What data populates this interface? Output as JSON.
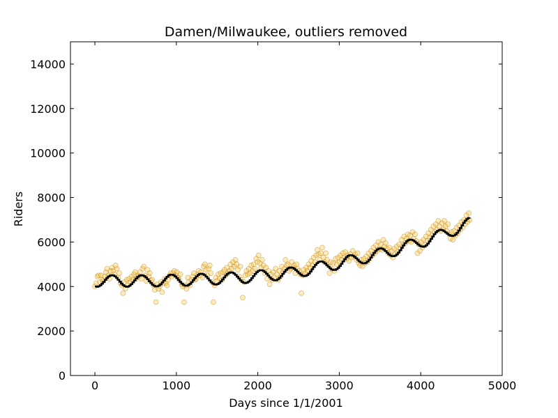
{
  "chart_data": {
    "type": "scatter",
    "title": "Damen/Milwaukee, outliers removed",
    "xlabel": "Days since 1/1/2001",
    "ylabel": "Riders",
    "xlim": [
      -300,
      5000
    ],
    "ylim": [
      0,
      15000
    ],
    "xticks": [
      0,
      1000,
      2000,
      3000,
      4000,
      5000
    ],
    "yticks": [
      0,
      2000,
      4000,
      6000,
      8000,
      10000,
      12000,
      14000
    ],
    "grid": false,
    "legend": "none",
    "colors": {
      "scatter_fill": "#ffb000",
      "scatter_edge": "#b07a00",
      "trend_line": "#000000"
    },
    "scatter_opacity": 0.25,
    "trend_anchor_days": [
      0,
      600,
      1200,
      1800,
      2400,
      3000,
      3600,
      4200,
      4600
    ],
    "trend_anchor_riders": [
      4250,
      4250,
      4300,
      4400,
      4600,
      5050,
      5550,
      6250,
      6850
    ],
    "trend_seasonal_amplitude": 260,
    "trend_step_days": 20,
    "trend_max_day": 4600,
    "series": [
      {
        "type": "scatter",
        "points": [
          [
            0,
            4000
          ],
          [
            15,
            4150
          ],
          [
            30,
            4450
          ],
          [
            45,
            4500
          ],
          [
            60,
            4200
          ],
          [
            75,
            4500
          ],
          [
            90,
            4300
          ],
          [
            105,
            4250
          ],
          [
            120,
            4450
          ],
          [
            135,
            4650
          ],
          [
            150,
            4800
          ],
          [
            165,
            4500
          ],
          [
            180,
            4350
          ],
          [
            195,
            4700
          ],
          [
            210,
            4850
          ],
          [
            225,
            4700
          ],
          [
            240,
            4550
          ],
          [
            255,
            4950
          ],
          [
            270,
            4800
          ],
          [
            285,
            4400
          ],
          [
            300,
            4600
          ],
          [
            315,
            4150
          ],
          [
            330,
            4050
          ],
          [
            345,
            3700
          ],
          [
            360,
            4200
          ],
          [
            375,
            3900
          ],
          [
            390,
            4300
          ],
          [
            405,
            4050
          ],
          [
            420,
            4350
          ],
          [
            435,
            4200
          ],
          [
            450,
            4450
          ],
          [
            465,
            4300
          ],
          [
            480,
            4550
          ],
          [
            495,
            4650
          ],
          [
            510,
            4350
          ],
          [
            525,
            4500
          ],
          [
            540,
            4450
          ],
          [
            555,
            4650
          ],
          [
            570,
            4350
          ],
          [
            585,
            4800
          ],
          [
            600,
            4900
          ],
          [
            615,
            4500
          ],
          [
            630,
            4250
          ],
          [
            645,
            4750
          ],
          [
            660,
            4450
          ],
          [
            675,
            4600
          ],
          [
            690,
            4250
          ],
          [
            705,
            4300
          ],
          [
            720,
            4050
          ],
          [
            735,
            3850
          ],
          [
            750,
            3300
          ],
          [
            765,
            4100
          ],
          [
            780,
            3900
          ],
          [
            795,
            4000
          ],
          [
            810,
            4200
          ],
          [
            825,
            3750
          ],
          [
            840,
            4150
          ],
          [
            855,
            4350
          ],
          [
            870,
            4150
          ],
          [
            885,
            4050
          ],
          [
            900,
            4300
          ],
          [
            915,
            4500
          ],
          [
            930,
            4600
          ],
          [
            945,
            4450
          ],
          [
            960,
            4600
          ],
          [
            975,
            4700
          ],
          [
            990,
            4500
          ],
          [
            1005,
            4650
          ],
          [
            1020,
            4400
          ],
          [
            1035,
            4300
          ],
          [
            1050,
            4550
          ],
          [
            1065,
            4100
          ],
          [
            1080,
            4000
          ],
          [
            1095,
            3300
          ],
          [
            1110,
            4050
          ],
          [
            1125,
            3900
          ],
          [
            1140,
            4400
          ],
          [
            1155,
            4200
          ],
          [
            1170,
            4050
          ],
          [
            1185,
            4300
          ],
          [
            1200,
            4450
          ],
          [
            1215,
            4600
          ],
          [
            1230,
            4300
          ],
          [
            1245,
            4350
          ],
          [
            1260,
            4550
          ],
          [
            1275,
            4700
          ],
          [
            1290,
            4500
          ],
          [
            1305,
            4650
          ],
          [
            1320,
            4400
          ],
          [
            1335,
            4900
          ],
          [
            1350,
            5000
          ],
          [
            1365,
            4750
          ],
          [
            1380,
            4500
          ],
          [
            1395,
            4800
          ],
          [
            1410,
            4950
          ],
          [
            1425,
            4600
          ],
          [
            1440,
            4200
          ],
          [
            1455,
            3300
          ],
          [
            1470,
            4050
          ],
          [
            1485,
            4400
          ],
          [
            1500,
            4250
          ],
          [
            1515,
            4550
          ],
          [
            1530,
            4350
          ],
          [
            1545,
            4600
          ],
          [
            1560,
            4300
          ],
          [
            1575,
            4650
          ],
          [
            1590,
            4750
          ],
          [
            1605,
            4500
          ],
          [
            1620,
            4850
          ],
          [
            1635,
            4600
          ],
          [
            1650,
            4700
          ],
          [
            1665,
            5000
          ],
          [
            1680,
            4800
          ],
          [
            1695,
            5100
          ],
          [
            1710,
            4900
          ],
          [
            1725,
            5200
          ],
          [
            1740,
            5000
          ],
          [
            1755,
            4750
          ],
          [
            1770,
            4450
          ],
          [
            1785,
            4900
          ],
          [
            1800,
            4300
          ],
          [
            1815,
            3500
          ],
          [
            1830,
            4200
          ],
          [
            1845,
            4500
          ],
          [
            1860,
            4700
          ],
          [
            1875,
            4550
          ],
          [
            1890,
            4800
          ],
          [
            1905,
            4600
          ],
          [
            1920,
            4950
          ],
          [
            1935,
            4700
          ],
          [
            1950,
            5000
          ],
          [
            1965,
            4800
          ],
          [
            1980,
            5250
          ],
          [
            1995,
            5100
          ],
          [
            2010,
            5400
          ],
          [
            2025,
            5050
          ],
          [
            2040,
            4850
          ],
          [
            2055,
            5200
          ],
          [
            2070,
            4950
          ],
          [
            2085,
            4600
          ],
          [
            2100,
            4850
          ],
          [
            2115,
            4350
          ],
          [
            2130,
            4700
          ],
          [
            2145,
            4100
          ],
          [
            2160,
            4550
          ],
          [
            2175,
            4300
          ],
          [
            2190,
            4650
          ],
          [
            2205,
            4400
          ],
          [
            2220,
            4800
          ],
          [
            2235,
            4550
          ],
          [
            2250,
            4300
          ],
          [
            2265,
            4700
          ],
          [
            2280,
            4450
          ],
          [
            2295,
            4900
          ],
          [
            2310,
            4650
          ],
          [
            2325,
            4800
          ],
          [
            2340,
            5200
          ],
          [
            2355,
            4950
          ],
          [
            2370,
            5000
          ],
          [
            2385,
            4700
          ],
          [
            2400,
            4800
          ],
          [
            2415,
            5100
          ],
          [
            2430,
            4850
          ],
          [
            2445,
            4950
          ],
          [
            2460,
            4600
          ],
          [
            2475,
            5000
          ],
          [
            2490,
            4800
          ],
          [
            2505,
            4700
          ],
          [
            2520,
            4550
          ],
          [
            2535,
            3700
          ],
          [
            2550,
            4500
          ],
          [
            2565,
            4750
          ],
          [
            2580,
            4600
          ],
          [
            2595,
            4850
          ],
          [
            2610,
            4700
          ],
          [
            2625,
            5000
          ],
          [
            2640,
            4850
          ],
          [
            2655,
            5150
          ],
          [
            2670,
            4950
          ],
          [
            2685,
            5300
          ],
          [
            2700,
            5100
          ],
          [
            2715,
            5400
          ],
          [
            2730,
            5650
          ],
          [
            2745,
            5450
          ],
          [
            2760,
            5200
          ],
          [
            2775,
            5500
          ],
          [
            2790,
            5750
          ],
          [
            2805,
            5300
          ],
          [
            2820,
            5100
          ],
          [
            2835,
            5500
          ],
          [
            2850,
            5200
          ],
          [
            2865,
            4950
          ],
          [
            2880,
            4600
          ],
          [
            2895,
            5100
          ],
          [
            2910,
            4800
          ],
          [
            2925,
            5050
          ],
          [
            2940,
            4700
          ],
          [
            2955,
            5250
          ],
          [
            2970,
            5000
          ],
          [
            2985,
            5300
          ],
          [
            3000,
            5100
          ],
          [
            3015,
            5400
          ],
          [
            3030,
            5200
          ],
          [
            3045,
            5500
          ],
          [
            3060,
            5300
          ],
          [
            3075,
            5550
          ],
          [
            3090,
            5250
          ],
          [
            3105,
            5400
          ],
          [
            3120,
            5150
          ],
          [
            3135,
            5450
          ],
          [
            3150,
            5300
          ],
          [
            3165,
            5600
          ],
          [
            3180,
            5350
          ],
          [
            3195,
            5450
          ],
          [
            3210,
            5200
          ],
          [
            3225,
            5500
          ],
          [
            3240,
            5050
          ],
          [
            3255,
            4950
          ],
          [
            3270,
            5200
          ],
          [
            3285,
            4900
          ],
          [
            3300,
            5250
          ],
          [
            3315,
            5050
          ],
          [
            3330,
            5350
          ],
          [
            3345,
            5100
          ],
          [
            3360,
            5500
          ],
          [
            3375,
            5250
          ],
          [
            3390,
            5600
          ],
          [
            3405,
            5400
          ],
          [
            3420,
            5750
          ],
          [
            3435,
            5500
          ],
          [
            3450,
            5850
          ],
          [
            3465,
            5600
          ],
          [
            3480,
            6000
          ],
          [
            3495,
            5700
          ],
          [
            3510,
            5900
          ],
          [
            3525,
            5650
          ],
          [
            3540,
            6100
          ],
          [
            3555,
            5800
          ],
          [
            3570,
            5950
          ],
          [
            3585,
            5700
          ],
          [
            3600,
            5500
          ],
          [
            3615,
            5750
          ],
          [
            3630,
            5400
          ],
          [
            3645,
            5600
          ],
          [
            3660,
            5300
          ],
          [
            3675,
            5700
          ],
          [
            3690,
            5450
          ],
          [
            3705,
            5800
          ],
          [
            3720,
            5550
          ],
          [
            3735,
            5900
          ],
          [
            3750,
            5700
          ],
          [
            3765,
            6100
          ],
          [
            3780,
            5850
          ],
          [
            3795,
            6250
          ],
          [
            3810,
            5950
          ],
          [
            3825,
            6150
          ],
          [
            3840,
            6350
          ],
          [
            3855,
            6050
          ],
          [
            3870,
            6300
          ],
          [
            3885,
            6000
          ],
          [
            3900,
            6450
          ],
          [
            3915,
            6150
          ],
          [
            3930,
            6350
          ],
          [
            3945,
            6050
          ],
          [
            3960,
            5500
          ],
          [
            3975,
            5900
          ],
          [
            3990,
            5600
          ],
          [
            4005,
            6000
          ],
          [
            4020,
            5750
          ],
          [
            4035,
            6100
          ],
          [
            4050,
            5850
          ],
          [
            4065,
            6250
          ],
          [
            4080,
            6050
          ],
          [
            4095,
            6400
          ],
          [
            4110,
            6200
          ],
          [
            4125,
            6550
          ],
          [
            4140,
            6300
          ],
          [
            4155,
            6700
          ],
          [
            4170,
            6450
          ],
          [
            4185,
            6800
          ],
          [
            4200,
            6550
          ],
          [
            4215,
            6950
          ],
          [
            4230,
            6700
          ],
          [
            4245,
            6500
          ],
          [
            4260,
            6850
          ],
          [
            4275,
            6600
          ],
          [
            4290,
            6950
          ],
          [
            4305,
            6700
          ],
          [
            4320,
            6500
          ],
          [
            4335,
            6800
          ],
          [
            4350,
            6350
          ],
          [
            4365,
            6150
          ],
          [
            4380,
            6450
          ],
          [
            4395,
            6100
          ],
          [
            4410,
            6500
          ],
          [
            4425,
            6300
          ],
          [
            4440,
            6650
          ],
          [
            4455,
            6400
          ],
          [
            4470,
            6750
          ],
          [
            4485,
            6550
          ],
          [
            4500,
            6900
          ],
          [
            4515,
            6650
          ],
          [
            4530,
            7000
          ],
          [
            4545,
            6800
          ],
          [
            4560,
            7200
          ],
          [
            4575,
            6900
          ],
          [
            4590,
            7300
          ],
          [
            4600,
            7000
          ]
        ]
      }
    ]
  }
}
